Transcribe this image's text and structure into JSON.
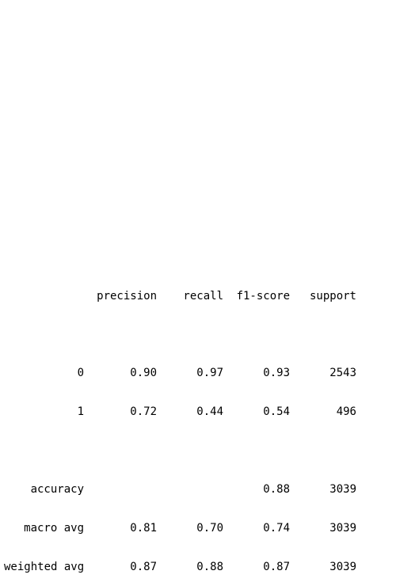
{
  "report": {
    "headers": {
      "precision": "precision",
      "recall": "recall",
      "f1": "f1-score",
      "support": "support"
    },
    "rows": [
      {
        "label": "0",
        "precision": "0.90",
        "recall": "0.97",
        "f1": "0.93",
        "support": "2543"
      },
      {
        "label": "1",
        "precision": "0.72",
        "recall": "0.44",
        "f1": "0.54",
        "support": "496"
      }
    ],
    "summary": [
      {
        "label": "accuracy",
        "precision": "",
        "recall": "",
        "f1": "0.88",
        "support": "3039"
      },
      {
        "label": "macro avg",
        "precision": "0.81",
        "recall": "0.70",
        "f1": "0.74",
        "support": "3039"
      },
      {
        "label": "weighted avg",
        "precision": "0.87",
        "recall": "0.88",
        "f1": "0.87",
        "support": "3039"
      }
    ]
  }
}
